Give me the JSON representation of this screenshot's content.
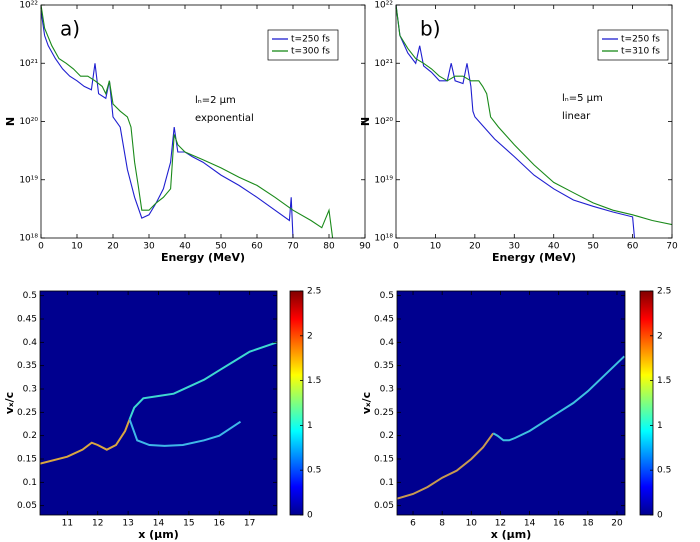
{
  "chart_data": [
    {
      "type": "line",
      "yscale": "log",
      "legend": "upper right",
      "xlabel": "Energy (MeV)",
      "ylabel": "N",
      "annotations": [
        "a)",
        "lₙ=2 μm",
        "exponential"
      ],
      "xlim": [
        0,
        90
      ],
      "xticks": [
        0,
        10,
        20,
        30,
        40,
        50,
        60,
        70,
        80,
        90
      ],
      "ylim": [
        1e+18,
        1e+22
      ],
      "yticks": [
        {
          "value": 1e+18,
          "label": "10¹⁸"
        },
        {
          "value": 1e+19,
          "label": "10¹⁹"
        },
        {
          "value": 1e+20,
          "label": "10²⁰"
        },
        {
          "value": 1e+21,
          "label": "10²¹"
        },
        {
          "value": 1e+22,
          "label": "10²²"
        }
      ],
      "series": [
        {
          "name": "t=250 fs",
          "color": "#1f1fd0",
          "x": [
            0,
            1,
            2,
            4,
            6,
            8,
            10,
            12,
            14,
            15,
            16,
            18,
            19,
            20,
            22,
            24,
            26,
            28,
            30,
            32,
            34,
            36,
            37,
            38,
            40,
            42,
            45,
            50,
            55,
            60,
            65,
            69,
            69.5,
            70
          ],
          "values": [
            8e+21,
            3e+21,
            2e+21,
            1.2e+21,
            8e+20,
            6e+20,
            5e+20,
            4e+20,
            3.5e+20,
            1e+21,
            3e+20,
            2.5e+20,
            5e+20,
            1.2e+20,
            8e+19,
            1.5e+19,
            5e+18,
            2.2e+18,
            2.5e+18,
            4e+18,
            7e+18,
            2e+19,
            8e+19,
            3e+19,
            3e+19,
            2.5e+19,
            2e+19,
            1.2e+19,
            8e+18,
            5e+18,
            3e+18,
            2e+18,
            5e+18,
            1e+18
          ]
        },
        {
          "name": "t=300 fs",
          "color": "#1a8a1a",
          "x": [
            0,
            1,
            3,
            5,
            7,
            9,
            11,
            13,
            15,
            17,
            18,
            19,
            20,
            22,
            24,
            25,
            26,
            27,
            28,
            30,
            32,
            34,
            36,
            37,
            38,
            40,
            45,
            50,
            55,
            60,
            65,
            70,
            75,
            78,
            80,
            81
          ],
          "values": [
            1e+22,
            4e+21,
            2e+21,
            1.2e+21,
            1e+21,
            8e+20,
            6e+20,
            6e+20,
            5e+20,
            4e+20,
            3e+20,
            5e+20,
            2e+20,
            1.5e+20,
            1.2e+20,
            8e+19,
            2e+19,
            8e+18,
            3e+18,
            3e+18,
            4e+18,
            5e+18,
            7e+18,
            6e+19,
            4e+19,
            3e+19,
            2.2e+19,
            1.6e+19,
            1.1e+19,
            8e+18,
            5e+18,
            3e+18,
            2e+18,
            1.5e+18,
            3e+18,
            1e+18
          ]
        }
      ]
    },
    {
      "type": "line",
      "yscale": "log",
      "legend": "upper right",
      "xlabel": "Energy (MeV)",
      "ylabel": "N",
      "annotations": [
        "b)",
        "lₙ=5 μm",
        "linear"
      ],
      "xlim": [
        0,
        70
      ],
      "xticks": [
        0,
        10,
        20,
        30,
        40,
        50,
        60,
        70
      ],
      "ylim": [
        1e+18,
        1e+22
      ],
      "yticks": [
        {
          "value": 1e+18,
          "label": "10¹⁸"
        },
        {
          "value": 1e+19,
          "label": "10¹⁹"
        },
        {
          "value": 1e+20,
          "label": "10²⁰"
        },
        {
          "value": 1e+21,
          "label": "10²¹"
        },
        {
          "value": 1e+22,
          "label": "10²²"
        }
      ],
      "series": [
        {
          "name": "t=250 fs",
          "color": "#1f1fd0",
          "x": [
            0,
            1,
            3,
            5,
            6,
            7,
            9,
            11,
            13,
            14,
            15,
            17,
            18,
            19,
            19.5,
            20,
            25,
            30,
            35,
            40,
            45,
            50,
            55,
            60,
            60.5
          ],
          "values": [
            1e+22,
            3e+21,
            1.5e+21,
            1e+21,
            2e+21,
            9e+20,
            7e+20,
            5e+20,
            5e+20,
            1e+21,
            5e+20,
            4.5e+20,
            1e+21,
            4e+20,
            1.5e+20,
            1.2e+20,
            5e+19,
            2.5e+19,
            1.2e+19,
            7e+18,
            4.5e+18,
            3.5e+18,
            2.8e+18,
            2.3e+18,
            1e+18
          ]
        },
        {
          "name": "t=310 fs",
          "color": "#1a8a1a",
          "x": [
            0,
            1,
            3,
            5,
            7,
            9,
            11,
            13,
            15,
            17,
            19,
            21,
            22,
            23,
            24,
            26,
            30,
            35,
            40,
            45,
            50,
            55,
            60,
            65,
            70
          ],
          "values": [
            1e+22,
            3e+21,
            1.8e+21,
            1.2e+21,
            1e+21,
            8e+20,
            6e+20,
            5e+20,
            6e+20,
            6e+20,
            5e+20,
            5e+20,
            4e+20,
            3e+20,
            1.2e+20,
            8e+19,
            4e+19,
            1.8e+19,
            9e+18,
            6e+18,
            4e+18,
            3e+18,
            2.5e+18,
            2e+18,
            1.7e+18
          ]
        }
      ]
    },
    {
      "type": "heatmap",
      "colormap": "jet",
      "background": "#00008f",
      "xlabel": "x (μm)",
      "ylabel": "vₓ/c",
      "xlim": [
        10.1,
        17.9
      ],
      "xticks": [
        11,
        12,
        13,
        14,
        15,
        16,
        17
      ],
      "ylim": [
        0.03,
        0.51
      ],
      "yticks": [
        0.05,
        0.1,
        0.15,
        0.2,
        0.25,
        0.3,
        0.35,
        0.4,
        0.45,
        0.5
      ],
      "clim": [
        0,
        2.5
      ],
      "cticks": [
        0,
        0.5,
        1,
        1.5,
        2,
        2.5
      ],
      "series": [
        {
          "color": "#d9a640",
          "x": [
            10.1,
            11,
            11.5,
            11.8,
            12,
            12.3,
            12.6,
            12.9,
            13.05
          ],
          "values": [
            0.14,
            0.155,
            0.17,
            0.185,
            0.18,
            0.17,
            0.18,
            0.21,
            0.235
          ]
        },
        {
          "color": "#3fd8d0",
          "x": [
            13.05,
            13.2,
            13.5,
            14,
            14.5,
            15,
            15.5,
            16,
            16.5,
            17,
            17.9
          ],
          "values": [
            0.235,
            0.26,
            0.28,
            0.285,
            0.29,
            0.305,
            0.32,
            0.34,
            0.36,
            0.38,
            0.4
          ]
        },
        {
          "color": "#3fb8e8",
          "x": [
            13.05,
            13.3,
            13.7,
            14.2,
            14.8,
            15.5,
            16,
            16.7
          ],
          "values": [
            0.235,
            0.19,
            0.18,
            0.178,
            0.18,
            0.19,
            0.2,
            0.23
          ]
        }
      ]
    },
    {
      "type": "heatmap",
      "colormap": "jet",
      "background": "#00008f",
      "xlabel": "x (μm)",
      "ylabel": "vₓ/c",
      "xlim": [
        4.9,
        20.55
      ],
      "xticks": [
        6,
        8,
        10,
        12,
        14,
        16,
        18,
        20
      ],
      "ylim": [
        0.03,
        0.51
      ],
      "yticks": [
        0.05,
        0.1,
        0.15,
        0.2,
        0.25,
        0.3,
        0.35,
        0.4,
        0.45,
        0.5
      ],
      "clim": [
        0,
        2.5
      ],
      "cticks": [
        0,
        0.5,
        1,
        1.5,
        2,
        2.5
      ],
      "series": [
        {
          "color": "#c89a50",
          "x": [
            4.9,
            6,
            7,
            8,
            9,
            10,
            10.8,
            11.5
          ],
          "values": [
            0.065,
            0.075,
            0.09,
            0.11,
            0.125,
            0.15,
            0.175,
            0.205
          ]
        },
        {
          "color": "#3fc0e0",
          "x": [
            11.5,
            11.8,
            12.2,
            12.6,
            13,
            14,
            15,
            16,
            17,
            18,
            19,
            20,
            20.5
          ],
          "values": [
            0.205,
            0.2,
            0.19,
            0.19,
            0.195,
            0.21,
            0.23,
            0.25,
            0.27,
            0.295,
            0.325,
            0.355,
            0.37
          ]
        }
      ]
    }
  ]
}
